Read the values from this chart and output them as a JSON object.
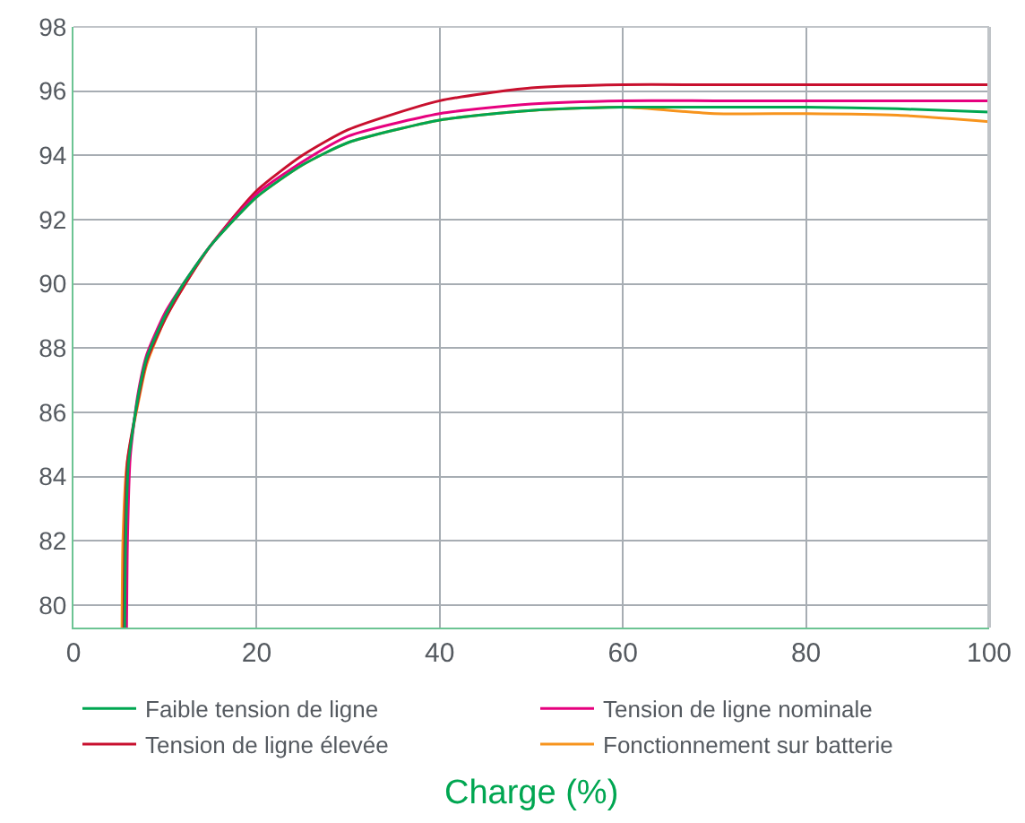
{
  "chart_data": {
    "type": "line",
    "xlabel": "Charge (%)",
    "xlim": [
      0,
      100
    ],
    "xticks": [
      0,
      20,
      40,
      60,
      80,
      100
    ],
    "ylim": [
      79.3,
      98
    ],
    "yticks": [
      80,
      82,
      84,
      86,
      88,
      90,
      92,
      94,
      96,
      98
    ],
    "grid": true,
    "legend": "bottom",
    "marker": "none",
    "line_style": "solid",
    "series": [
      {
        "name": "Faible tension de ligne",
        "color": "#00a651",
        "x": [
          5.6,
          5.7,
          6,
          7,
          8,
          10,
          12,
          15,
          20,
          25,
          30,
          40,
          50,
          60,
          70,
          80,
          90,
          100
        ],
        "values": [
          79.3,
          82,
          84.4,
          86.4,
          87.7,
          89,
          90,
          91.2,
          92.7,
          93.7,
          94.4,
          95.1,
          95.4,
          95.5,
          95.5,
          95.5,
          95.45,
          95.35
        ]
      },
      {
        "name": "Tension de ligne nominale",
        "color": "#e6007e",
        "x": [
          5.8,
          5.9,
          6.2,
          7,
          8,
          10,
          12,
          15,
          20,
          25,
          30,
          40,
          50,
          60,
          70,
          80,
          90,
          100
        ],
        "values": [
          79.3,
          82,
          84.6,
          86.5,
          87.8,
          89.1,
          90,
          91.2,
          92.8,
          93.8,
          94.6,
          95.3,
          95.6,
          95.7,
          95.7,
          95.7,
          95.7,
          95.7
        ]
      },
      {
        "name": "Tension de ligne élevée",
        "color": "#c8102e",
        "x": [
          5.5,
          5.6,
          5.9,
          7,
          8,
          10,
          12,
          15,
          20,
          25,
          30,
          40,
          50,
          60,
          70,
          80,
          90,
          100
        ],
        "values": [
          79.3,
          82,
          84.5,
          86.3,
          87.6,
          88.9,
          89.9,
          91.2,
          92.9,
          94,
          94.8,
          95.7,
          96.1,
          96.2,
          96.2,
          96.2,
          96.2,
          96.2
        ]
      },
      {
        "name": "Fonctionnement sur batterie",
        "color": "#f7941d",
        "x": [
          5.3,
          5.4,
          5.8,
          7,
          8,
          10,
          12,
          15,
          20,
          25,
          30,
          40,
          50,
          60,
          70,
          80,
          90,
          100
        ],
        "values": [
          79.3,
          82,
          84.3,
          86.2,
          87.5,
          88.9,
          89.9,
          91.2,
          92.7,
          93.7,
          94.4,
          95.1,
          95.4,
          95.5,
          95.3,
          95.3,
          95.25,
          95.05
        ]
      }
    ]
  }
}
